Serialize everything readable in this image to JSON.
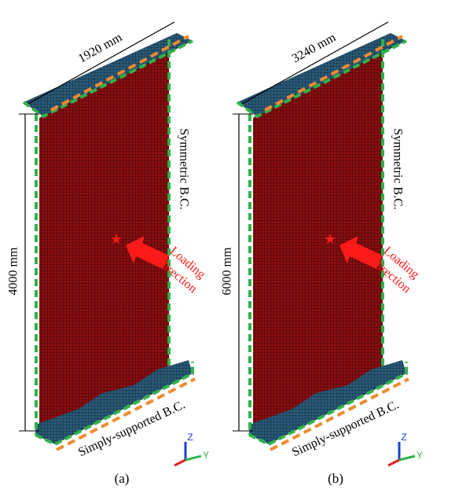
{
  "panels": [
    {
      "label": "(a)",
      "width_label": "1920 mm",
      "height_label": "4000 mm",
      "top_bc": "Symmetric B.C.",
      "bottom_bc": "Simply-supported B.C.",
      "loading": [
        "Loading",
        "direction"
      ],
      "axes": [
        "Z",
        "Y"
      ]
    },
    {
      "label": "(b)",
      "width_label": "3240 mm",
      "height_label": "6000 mm",
      "top_bc": "Symmetric B.C.",
      "bottom_bc": "Simply-supported B.C.",
      "loading": [
        "Loading",
        "direction"
      ],
      "axes": [
        "Z",
        "Y"
      ]
    }
  ]
}
